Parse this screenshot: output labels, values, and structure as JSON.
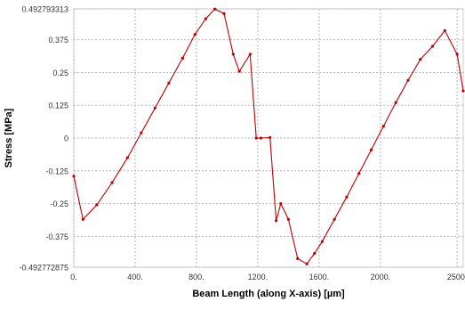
{
  "chart_data": {
    "type": "line",
    "xlabel": "Beam Length (along X-axis) [µm]",
    "ylabel": "Stress [MPa]",
    "xlim": [
      0,
      2540
    ],
    "ylim": [
      -0.492772875,
      0.492793313
    ],
    "x_ticks": [
      0,
      400,
      800,
      1200,
      1600,
      2000,
      2500
    ],
    "x_tick_labels": [
      "0.",
      "400.",
      "800.",
      "1200.",
      "1600.",
      "2000.",
      "2500."
    ],
    "y_ticks": [
      0.492793313,
      0.375,
      0.25,
      0.125,
      0,
      -0.125,
      -0.25,
      -0.375,
      -0.492772875
    ],
    "y_tick_labels": [
      "0.492793313",
      "0.375",
      "0.25",
      "0.125",
      "0",
      "-0.125",
      "-0.25",
      "-0.375",
      "-0.492772875"
    ],
    "grid": true,
    "line_color": "#c00000",
    "series": [
      {
        "x": [
          0,
          60,
          150,
          250,
          350,
          440,
          530,
          620,
          710,
          790,
          860,
          920,
          980,
          1040,
          1080,
          1150,
          1190,
          1220,
          1280,
          1320,
          1350,
          1400,
          1460,
          1520,
          1570,
          1620,
          1700,
          1780,
          1860,
          1940,
          2020,
          2100,
          2180,
          2260,
          2340,
          2420,
          2500,
          2540
        ],
        "y": [
          -0.145,
          -0.31,
          -0.255,
          -0.17,
          -0.075,
          0.02,
          0.115,
          0.21,
          0.305,
          0.395,
          0.455,
          0.492,
          0.475,
          0.32,
          0.255,
          0.32,
          0.0,
          0.0,
          0.002,
          -0.315,
          -0.25,
          -0.31,
          -0.46,
          -0.48,
          -0.44,
          -0.395,
          -0.31,
          -0.225,
          -0.135,
          -0.045,
          0.045,
          0.135,
          0.22,
          0.3,
          0.35,
          0.41,
          0.32,
          0.18
        ]
      }
    ]
  }
}
